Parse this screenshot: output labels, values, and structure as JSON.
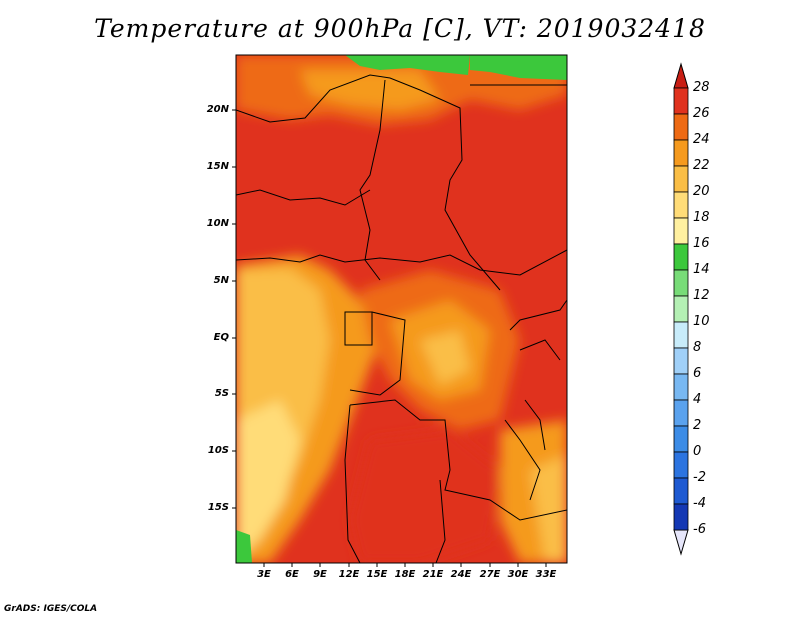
{
  "title": "Temperature at 900hPa [C], VT: 2019032418",
  "footer": "GrADS: IGES/COLA",
  "lat_labels": [
    "20N",
    "15N",
    "10N",
    "5N",
    "EQ",
    "5S",
    "10S",
    "15S"
  ],
  "lon_labels": [
    "3E",
    "6E",
    "9E",
    "12E",
    "15E",
    "18E",
    "21E",
    "24E",
    "27E",
    "30E",
    "33E"
  ],
  "colorbar": {
    "levels": [
      "-6",
      "-4",
      "-2",
      "0",
      "2",
      "4",
      "6",
      "8",
      "10",
      "12",
      "14",
      "16",
      "18",
      "20",
      "22",
      "24",
      "26",
      "28"
    ],
    "colors": [
      "#0a0a6e",
      "#1438b4",
      "#1e5ad2",
      "#2c74e0",
      "#3c8ce6",
      "#5aa2ee",
      "#78b8f2",
      "#a0d0f8",
      "#c8ecfa",
      "#b4f0b4",
      "#78dc78",
      "#3cc83c",
      "#fff0a0",
      "#ffdc78",
      "#fabe46",
      "#f59a1e",
      "#ee6a14",
      "#e0321e",
      "#c81e14"
    ]
  },
  "map_region": {
    "lon_range": [
      0,
      35
    ],
    "lat_range": [
      -20,
      24
    ]
  },
  "colors": {
    "bg": "#ffffff",
    "border": "#000000"
  }
}
